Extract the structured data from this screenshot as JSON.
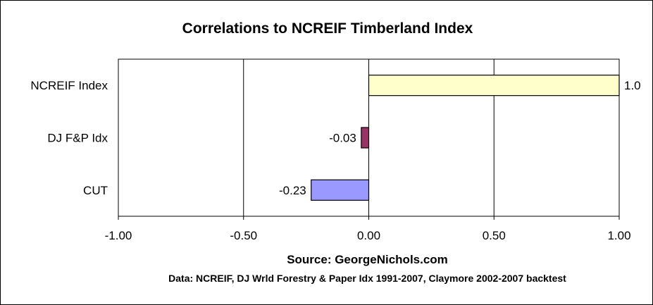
{
  "chart_data": {
    "type": "bar",
    "orientation": "horizontal",
    "title": "Correlations to NCREIF Timberland Index",
    "categories": [
      "NCREIF Index",
      "DJ F&P Idx",
      "CUT"
    ],
    "values": [
      1.0,
      -0.03,
      -0.23
    ],
    "data_labels": [
      "1.0",
      "-0.03",
      "-0.23"
    ],
    "bar_colors": [
      "#ffffcc",
      "#993366",
      "#9999ff"
    ],
    "xlim": [
      -1.0,
      1.0
    ],
    "x_ticks": [
      -1.0,
      -0.5,
      0.0,
      0.5,
      1.0
    ],
    "x_tick_labels": [
      "-1.00",
      "-0.50",
      "0.00",
      "0.50",
      "1.00"
    ],
    "grid": "vertical",
    "legend": "none",
    "xlabel": "",
    "ylabel": ""
  },
  "footer": {
    "source": "Source: GeorgeNichols.com",
    "note": "Data: NCREIF, DJ Wrld Forestry & Paper Idx 1991-2007, Claymore 2002-2007 backtest"
  }
}
